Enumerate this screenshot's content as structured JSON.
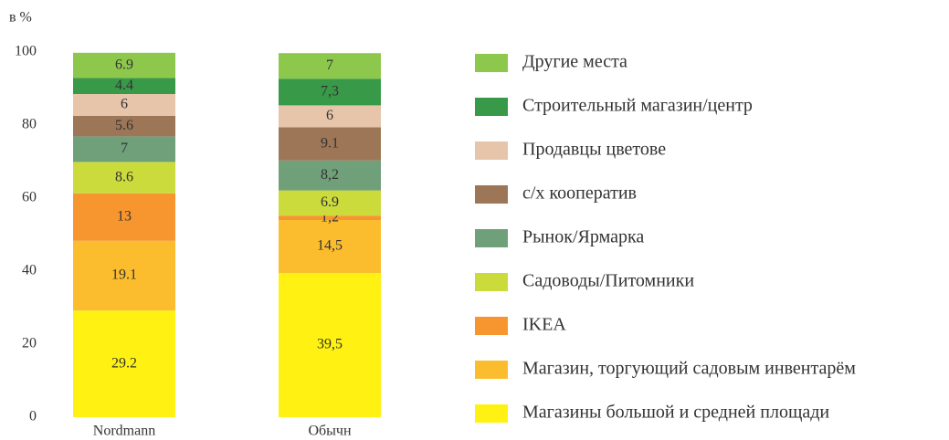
{
  "chart_data": {
    "type": "stacked_bar",
    "y_axis_label": "в %",
    "categories": [
      "Nordmann",
      "Обычн"
    ],
    "ylim": [
      0,
      100
    ],
    "yticks": [
      0,
      20,
      40,
      60,
      80,
      100
    ],
    "grid": false,
    "legend": "right",
    "series": [
      {
        "name": "Магазины большой и средней площади",
        "color": "#fff212",
        "values": [
          29.2,
          39.5
        ],
        "value_labels": [
          "29.2",
          "39,5"
        ]
      },
      {
        "name": "Магазин, торгующий садовым инвентарём",
        "color": "#fbbd2e",
        "values": [
          19.1,
          14.5
        ],
        "value_labels": [
          "19.1",
          "14,5"
        ]
      },
      {
        "name": "IKEA",
        "color": "#f7962f",
        "values": [
          13,
          1.2
        ],
        "value_labels": [
          "13",
          "1,2"
        ]
      },
      {
        "name": "Садоводы/Питомники",
        "color": "#cbdb3c",
        "values": [
          8.6,
          6.9
        ],
        "value_labels": [
          "8.6",
          "6.9"
        ]
      },
      {
        "name": "Рынок/Ярмарка",
        "color": "#70a07a",
        "values": [
          7,
          8.2
        ],
        "value_labels": [
          "7",
          "8,2"
        ]
      },
      {
        "name": "с/х кооператив",
        "color": "#9c7656",
        "values": [
          5.6,
          9.1
        ],
        "value_labels": [
          "5.6",
          "9.1"
        ]
      },
      {
        "name": "Продавцы цветове",
        "color": "#e7c5aa",
        "values": [
          6,
          6
        ],
        "value_labels": [
          "6",
          "6"
        ]
      },
      {
        "name": "Строительный магазин/центр",
        "color": "#389a48",
        "values": [
          4.4,
          7.3
        ],
        "value_labels": [
          "4.4",
          "7,3"
        ]
      },
      {
        "name": "Другие места",
        "color": "#8dc84c",
        "values": [
          6.9,
          7
        ],
        "value_labels": [
          "6.9",
          "7"
        ]
      }
    ]
  }
}
